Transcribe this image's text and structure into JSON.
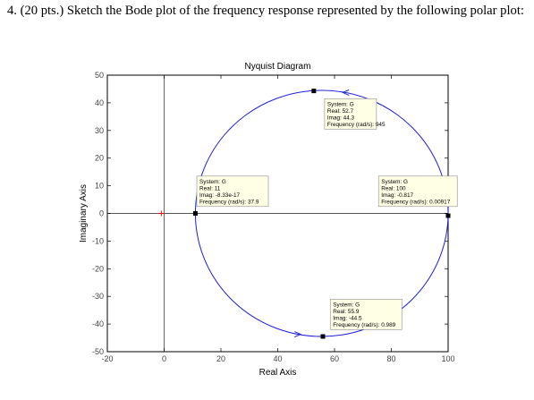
{
  "question": {
    "text": "4. (20 pts.) Sketch the Bode plot of the frequency response represented by the following polar plot:"
  },
  "colors": {
    "curve": "#1f1fd8",
    "axis_line": "#000000",
    "zero_line": "#555555",
    "critical_point": "#ff0000",
    "datatip_fill": "#ffffe6",
    "datatip_border": "#8c8c8c"
  },
  "chart_data": {
    "type": "line",
    "title": "Nyquist Diagram",
    "xlabel": "Real Axis",
    "ylabel": "Imaginary Axis",
    "xlim": [
      -20,
      100
    ],
    "ylim": [
      -50,
      50
    ],
    "xticks": [
      -20,
      0,
      20,
      40,
      60,
      80,
      100
    ],
    "yticks": [
      -50,
      -40,
      -30,
      -20,
      -10,
      0,
      10,
      20,
      30,
      40,
      50
    ],
    "grid": false,
    "critical_point": {
      "x": -1,
      "y": 0,
      "marker": "+"
    },
    "series": [
      {
        "shape": "circle",
        "center": [
          55.5,
          0
        ],
        "radius": 44.5,
        "markers": [
          {
            "x": 100,
            "y": -0.817
          },
          {
            "x": 55.9,
            "y": -44.5
          },
          {
            "x": 11,
            "y": 0
          },
          {
            "x": 52.7,
            "y": 44.3
          }
        ]
      }
    ],
    "datatips": [
      {
        "lines": [
          "System: G",
          "Real: 52.7",
          "Imag: 44.3",
          "Frequency (rad/s): 945"
        ]
      },
      {
        "lines": [
          "System: G",
          "Real: 11",
          "Imag: -8.33e-17",
          "Frequency (rad/s): 37.9"
        ]
      },
      {
        "lines": [
          "System: G",
          "Real: 100",
          "Imag: -0.817",
          "Frequency (rad/s): 0.00917"
        ]
      },
      {
        "lines": [
          "System: G",
          "Real: 55.9",
          "Imag: -44.5",
          "Frequency (rad/s): 0.989"
        ]
      }
    ]
  }
}
